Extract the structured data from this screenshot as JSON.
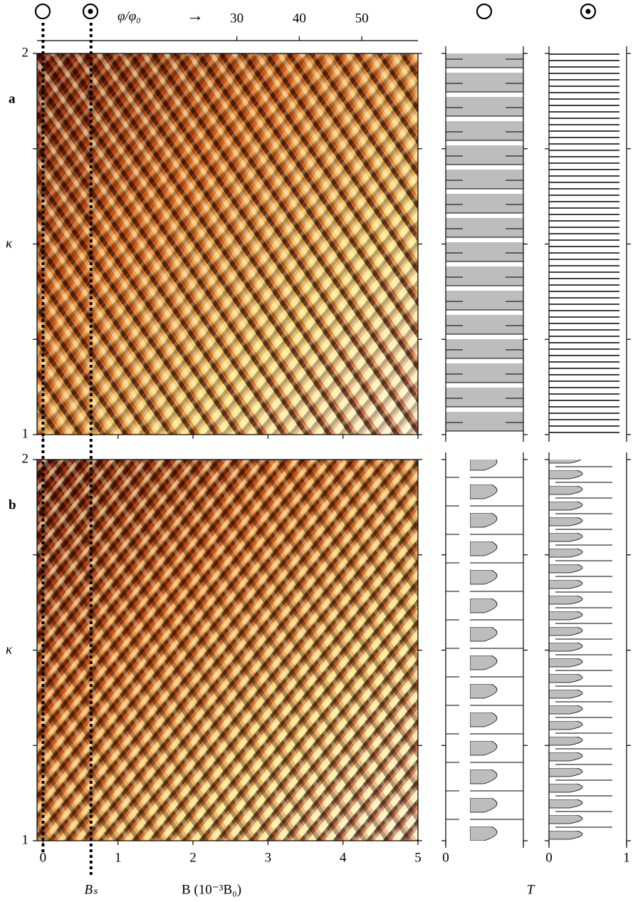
{
  "panels": [
    {
      "label": "a"
    },
    {
      "label": "b"
    }
  ],
  "top_axis": {
    "label": "φ/φ₀",
    "arrow": "→",
    "xlim": [
      -2,
      59
    ],
    "ticks": [
      30,
      40,
      50
    ]
  },
  "x_axis": {
    "label": "B (10⁻³B₀)",
    "xlim": [
      -0.08,
      5
    ],
    "ticks": [
      0,
      1,
      2,
      3,
      4,
      5
    ]
  },
  "y_axis": {
    "label": "κ",
    "ylim": [
      1,
      2
    ],
    "ticks": [
      1,
      2
    ],
    "minor_ticks": [
      1.25,
      1.5,
      1.75
    ]
  },
  "t_axis": {
    "label": "T",
    "xlim": [
      0,
      1
    ],
    "ticks": [
      0,
      1
    ]
  },
  "field_lines": {
    "label": "Bₛ",
    "values": [
      0,
      0.64
    ]
  }
}
